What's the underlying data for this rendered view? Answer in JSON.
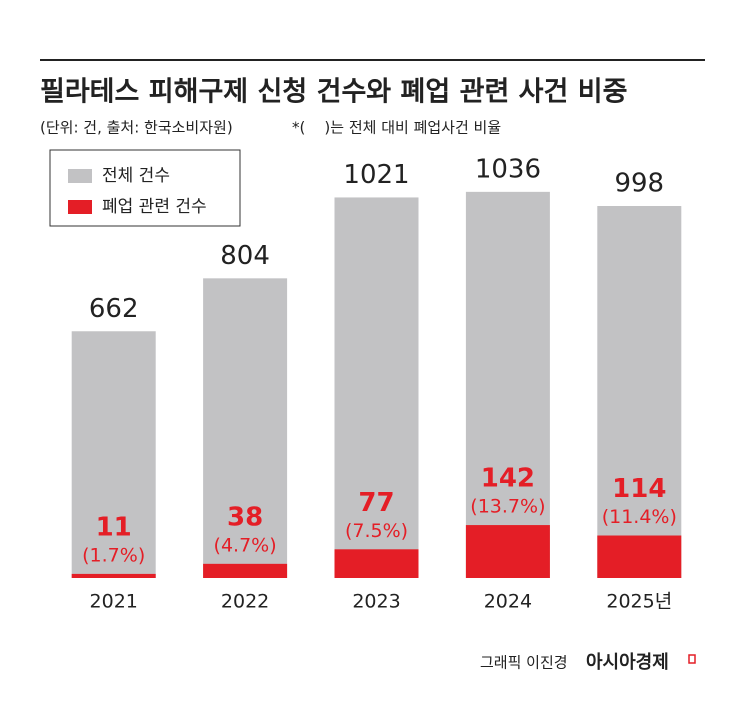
{
  "chart_data": {
    "type": "bar",
    "title": "필라테스 피해구제 신청 건수와 폐업 관련 사건 비중",
    "subtitle": "(단위: 건, 출처: 한국소비자원)",
    "note": "*(    )는 전체 대비 폐업사건 비율",
    "categories": [
      "2021",
      "2022",
      "2023",
      "2024",
      "2025년"
    ],
    "series": [
      {
        "name": "전체 건수",
        "color": "#c2c2c4",
        "values": [
          662,
          804,
          1021,
          1036,
          998
        ]
      },
      {
        "name": "폐업 관련 건수",
        "color": "#e41e26",
        "values": [
          11,
          38,
          77,
          142,
          114
        ],
        "shares": [
          1.7,
          4.7,
          7.5,
          13.7,
          11.4
        ],
        "share_labels": [
          "(1.7%)",
          "(4.7%)",
          "(7.5%)",
          "(13.7%)",
          "(11.4%)"
        ]
      }
    ],
    "ylim": [
      0,
      1100
    ],
    "legend": "top-left",
    "credit": "그래픽 이진경",
    "source": "아시아경제"
  }
}
